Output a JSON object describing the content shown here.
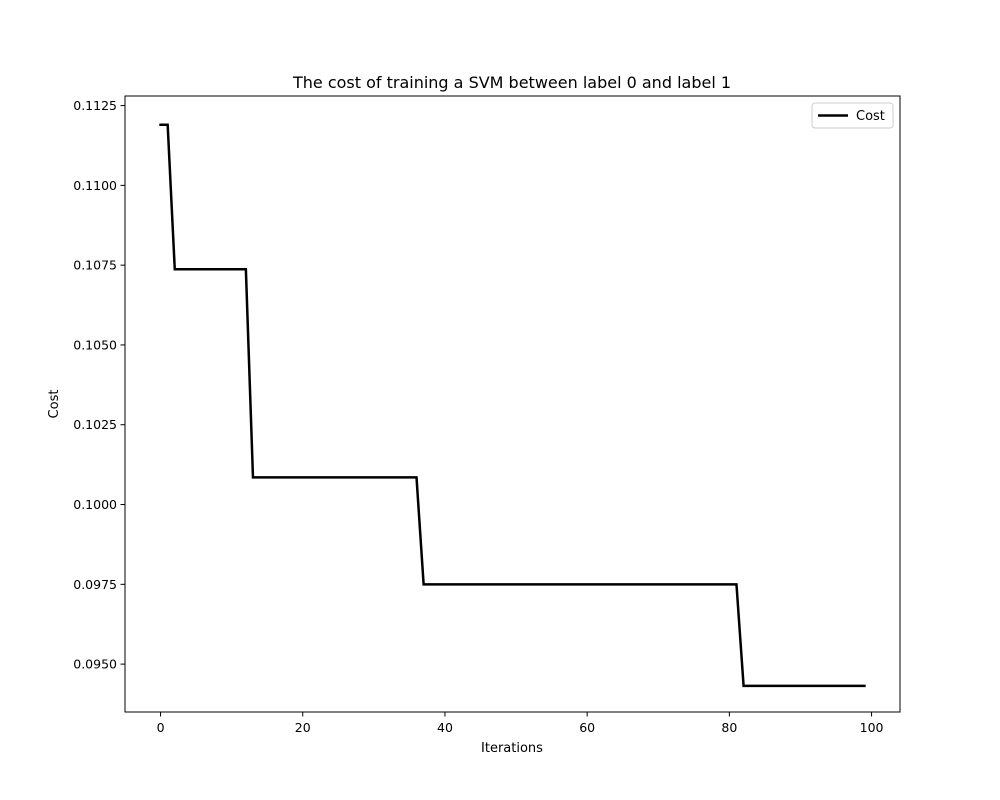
{
  "chart_data": {
    "type": "line",
    "title": "The cost of training a SVM between label 0 and label 1",
    "xlabel": "Iterations",
    "ylabel": "Cost",
    "xlim": [
      -5,
      104
    ],
    "ylim": [
      0.0935,
      0.1128
    ],
    "xticks": [
      0,
      20,
      40,
      60,
      80,
      100
    ],
    "yticks": [
      0.095,
      0.0975,
      0.1,
      0.1025,
      0.105,
      0.1075,
      0.11,
      0.1125
    ],
    "ytick_labels": [
      "0.0950",
      "0.0975",
      "0.1000",
      "0.1025",
      "0.1050",
      "0.1075",
      "0.1100",
      "0.1125"
    ],
    "grid": false,
    "legend_position": "top-right",
    "series": [
      {
        "name": "Cost",
        "color": "#000000",
        "x": [
          0,
          1,
          2,
          12,
          13,
          36,
          37,
          81,
          82,
          99
        ],
        "y": [
          0.1119,
          0.1119,
          0.10737,
          0.10737,
          0.10085,
          0.10085,
          0.0975,
          0.0975,
          0.09432,
          0.09432
        ]
      }
    ]
  }
}
